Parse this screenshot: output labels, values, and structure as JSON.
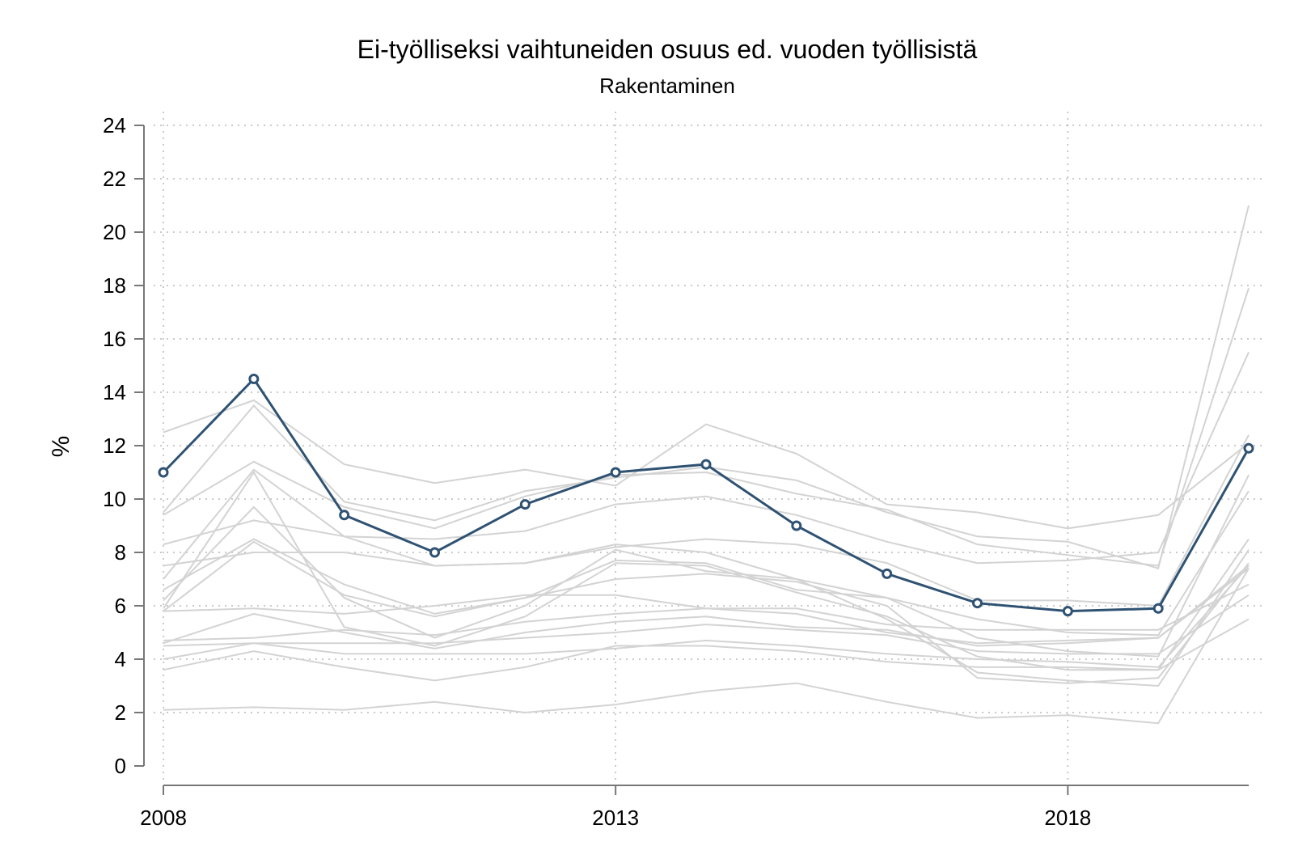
{
  "chart_data": {
    "type": "line",
    "title": "Ei-työlliseksi vaihtuneiden osuus ed. vuoden työllisistä",
    "subtitle": "Rakentaminen",
    "ylabel": "%",
    "xlabel": "",
    "xlim": [
      2008,
      2020
    ],
    "ylim": [
      0,
      24
    ],
    "xticks": [
      "2008",
      "2013",
      "2018"
    ],
    "xtick_values": [
      2008,
      2013,
      2018
    ],
    "yticks": [
      "0",
      "2",
      "4",
      "6",
      "8",
      "10",
      "12",
      "14",
      "16",
      "18",
      "20",
      "22",
      "24"
    ],
    "ytick_values": [
      0,
      2,
      4,
      6,
      8,
      10,
      12,
      14,
      16,
      18,
      20,
      22,
      24
    ],
    "grid": true,
    "x": [
      2008,
      2009,
      2010,
      2011,
      2012,
      2013,
      2014,
      2015,
      2016,
      2017,
      2018,
      2019,
      2020
    ],
    "highlight_color": "#2f5273",
    "background_color": "#d3d3d3",
    "highlight": {
      "values": [
        11.0,
        14.5,
        9.4,
        8.0,
        9.8,
        11.0,
        11.3,
        9.0,
        7.2,
        6.1,
        5.8,
        5.9,
        11.9
      ]
    },
    "background_series": [
      {
        "values": [
          12.5,
          13.7,
          11.3,
          10.6,
          11.1,
          10.5,
          12.8,
          11.7,
          9.8,
          9.5,
          8.9,
          9.4,
          12.1
        ]
      },
      {
        "values": [
          9.5,
          13.5,
          9.9,
          9.2,
          10.3,
          10.8,
          11.2,
          10.7,
          9.5,
          8.6,
          8.4,
          7.4,
          21.0
        ]
      },
      {
        "values": [
          9.4,
          11.4,
          9.7,
          8.9,
          10.1,
          10.9,
          11.0,
          10.2,
          9.6,
          8.3,
          7.9,
          7.5,
          17.9
        ]
      },
      {
        "values": [
          7.0,
          11.1,
          8.6,
          8.5,
          8.8,
          9.8,
          10.1,
          9.4,
          8.4,
          7.6,
          7.7,
          8.0,
          15.5
        ]
      },
      {
        "values": [
          8.3,
          9.2,
          8.6,
          7.5,
          7.6,
          8.2,
          8.5,
          8.3,
          7.6,
          6.2,
          6.2,
          6.0,
          12.4
        ]
      },
      {
        "values": [
          7.5,
          8.0,
          8.0,
          7.5,
          7.6,
          8.3,
          8.0,
          7.0,
          6.3,
          4.8,
          4.3,
          4.1,
          10.9
        ]
      },
      {
        "values": [
          6.6,
          8.5,
          6.8,
          5.7,
          6.3,
          7.7,
          7.6,
          6.6,
          6.3,
          5.5,
          5.0,
          4.9,
          10.3
        ]
      },
      {
        "values": [
          5.9,
          11.0,
          5.2,
          4.5,
          5.6,
          7.6,
          7.5,
          6.5,
          5.6,
          4.1,
          3.6,
          3.6,
          8.5
        ]
      },
      {
        "values": [
          6.2,
          9.7,
          6.3,
          4.8,
          6.0,
          8.1,
          7.3,
          7.0,
          5.5,
          3.5,
          3.2,
          3.0,
          8.1
        ]
      },
      {
        "values": [
          5.8,
          8.4,
          6.4,
          5.6,
          6.3,
          7.0,
          7.2,
          6.9,
          6.0,
          3.3,
          3.1,
          3.3,
          7.6
        ]
      },
      {
        "values": [
          5.8,
          5.9,
          5.7,
          6.0,
          6.4,
          6.4,
          5.9,
          5.7,
          5.0,
          4.6,
          4.7,
          4.8,
          7.5
        ]
      },
      {
        "values": [
          4.7,
          4.8,
          5.1,
          4.9,
          5.4,
          5.7,
          5.9,
          5.9,
          5.3,
          5.1,
          5.1,
          5.1,
          6.8
        ]
      },
      {
        "values": [
          4.6,
          5.7,
          5.0,
          4.4,
          5.0,
          5.4,
          5.6,
          5.2,
          5.1,
          4.5,
          4.6,
          4.8,
          7.4
        ]
      },
      {
        "values": [
          4.5,
          4.6,
          4.6,
          4.6,
          4.8,
          5.0,
          5.3,
          5.1,
          4.9,
          4.3,
          4.2,
          4.2,
          6.4
        ]
      },
      {
        "values": [
          4.0,
          4.6,
          4.2,
          4.2,
          4.2,
          4.4,
          4.7,
          4.5,
          4.2,
          4.0,
          3.9,
          3.7,
          7.5
        ]
      },
      {
        "values": [
          3.6,
          4.3,
          3.7,
          3.2,
          3.7,
          4.5,
          4.5,
          4.3,
          3.9,
          3.7,
          3.7,
          3.6,
          5.5
        ]
      },
      {
        "values": [
          2.1,
          2.2,
          2.1,
          2.4,
          2.0,
          2.3,
          2.8,
          3.1,
          2.4,
          1.8,
          1.9,
          1.6,
          7.4
        ]
      }
    ]
  }
}
